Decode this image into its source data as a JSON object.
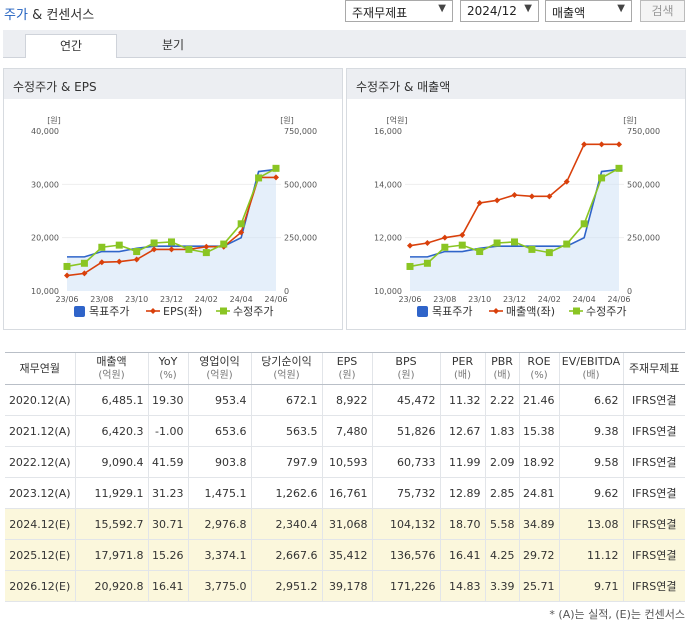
{
  "header": {
    "title_part1": "주가",
    "title_part2": "& 컨센서스",
    "select_type": "주재무제표",
    "select_period": "2024/12",
    "select_metric": "매출액",
    "search_label": "검색"
  },
  "tabs": [
    {
      "label": "연간"
    },
    {
      "label": "분기"
    }
  ],
  "colors": {
    "target": "#2f64c9",
    "eps": "#d9400b",
    "price": "#8ac523",
    "area": "#cfe1f5"
  },
  "chart1": {
    "title": "수정주가 & EPS",
    "left_unit": "[원]",
    "right_unit": "[원]",
    "left_ticks": [
      "40,000",
      "30,000",
      "20,000",
      "10,000"
    ],
    "right_ticks": [
      "750,000",
      "500,000",
      "250,000",
      "0"
    ],
    "x_ticks": [
      "23/06",
      "23/08",
      "23/10",
      "23/12",
      "24/02",
      "24/04",
      "24/06"
    ],
    "legend": [
      "목표주가",
      "EPS(좌)",
      "수정주가"
    ]
  },
  "chart2": {
    "title": "수정주가 & 매출액",
    "left_unit": "[억원]",
    "right_unit": "[원]",
    "left_ticks": [
      "16,000",
      "14,000",
      "12,000",
      "10,000"
    ],
    "right_ticks": [
      "750,000",
      "500,000",
      "250,000",
      "0"
    ],
    "x_ticks": [
      "23/06",
      "23/08",
      "23/10",
      "23/12",
      "24/02",
      "24/04",
      "24/06"
    ],
    "legend": [
      "목표주가",
      "매출액(좌)",
      "수정주가"
    ]
  },
  "chart_data": [
    {
      "type": "line",
      "title": "수정주가 & EPS",
      "x": [
        "23/06",
        "23/07",
        "23/08",
        "23/09",
        "23/10",
        "23/11",
        "23/12",
        "24/01",
        "24/02",
        "24/03",
        "24/04",
        "24/05",
        "24/06"
      ],
      "ylim_left": [
        10000,
        40000
      ],
      "ylim_right": [
        0,
        750000
      ],
      "series": [
        {
          "name": "목표주가",
          "axis": "right",
          "values": [
            160000,
            160000,
            185000,
            185000,
            200000,
            210000,
            210000,
            210000,
            210000,
            210000,
            250000,
            560000,
            570000
          ]
        },
        {
          "name": "EPS(좌)",
          "axis": "left",
          "values": [
            12900,
            13300,
            15400,
            15500,
            15900,
            17800,
            17800,
            17800,
            18300,
            18300,
            21000,
            31300,
            31300
          ]
        },
        {
          "name": "수정주가",
          "axis": "right",
          "values": [
            115000,
            130000,
            205000,
            215000,
            185000,
            225000,
            230000,
            195000,
            180000,
            220000,
            315000,
            530000,
            575000
          ]
        }
      ]
    },
    {
      "type": "line",
      "title": "수정주가 & 매출액",
      "x": [
        "23/06",
        "23/07",
        "23/08",
        "23/09",
        "23/10",
        "23/11",
        "23/12",
        "24/01",
        "24/02",
        "24/03",
        "24/04",
        "24/05",
        "24/06"
      ],
      "ylim_left": [
        10000,
        16000
      ],
      "ylim_right": [
        0,
        750000
      ],
      "series": [
        {
          "name": "목표주가",
          "axis": "right",
          "values": [
            160000,
            160000,
            185000,
            185000,
            200000,
            210000,
            210000,
            210000,
            210000,
            210000,
            250000,
            560000,
            570000
          ]
        },
        {
          "name": "매출액(좌)",
          "axis": "left",
          "values": [
            11700,
            11800,
            12000,
            12100,
            13300,
            13400,
            13600,
            13550,
            13550,
            14100,
            15500,
            15500,
            15500
          ]
        },
        {
          "name": "수정주가",
          "axis": "right",
          "values": [
            115000,
            130000,
            205000,
            215000,
            185000,
            225000,
            230000,
            195000,
            180000,
            220000,
            315000,
            530000,
            575000
          ]
        }
      ]
    }
  ],
  "table": {
    "headers": [
      {
        "label": "재무연월",
        "unit": ""
      },
      {
        "label": "매출액",
        "unit": "(억원)"
      },
      {
        "label": "YoY",
        "unit": "(%)"
      },
      {
        "label": "영업이익",
        "unit": "(억원)"
      },
      {
        "label": "당기순이익",
        "unit": "(억원)"
      },
      {
        "label": "EPS",
        "unit": "(원)"
      },
      {
        "label": "BPS",
        "unit": "(원)"
      },
      {
        "label": "PER",
        "unit": "(배)"
      },
      {
        "label": "PBR",
        "unit": "(배)"
      },
      {
        "label": "ROE",
        "unit": "(%)"
      },
      {
        "label": "EV/EBITDA",
        "unit": "(배)"
      },
      {
        "label": "주재무제표",
        "unit": ""
      }
    ],
    "rows": [
      {
        "est": false,
        "cells": [
          "2020.12(A)",
          "6,485.1",
          "19.30",
          "953.4",
          "672.1",
          "8,922",
          "45,472",
          "11.32",
          "2.22",
          "21.46",
          "6.62",
          "IFRS연결"
        ]
      },
      {
        "est": false,
        "cells": [
          "2021.12(A)",
          "6,420.3",
          "-1.00",
          "653.6",
          "563.5",
          "7,480",
          "51,826",
          "12.67",
          "1.83",
          "15.38",
          "9.38",
          "IFRS연결"
        ]
      },
      {
        "est": false,
        "cells": [
          "2022.12(A)",
          "9,090.4",
          "41.59",
          "903.8",
          "797.9",
          "10,593",
          "60,733",
          "11.99",
          "2.09",
          "18.92",
          "9.58",
          "IFRS연결"
        ]
      },
      {
        "est": false,
        "cells": [
          "2023.12(A)",
          "11,929.1",
          "31.23",
          "1,475.1",
          "1,262.6",
          "16,761",
          "75,732",
          "12.89",
          "2.85",
          "24.81",
          "9.62",
          "IFRS연결"
        ]
      },
      {
        "est": true,
        "cells": [
          "2024.12(E)",
          "15,592.7",
          "30.71",
          "2,976.8",
          "2,340.4",
          "31,068",
          "104,132",
          "18.70",
          "5.58",
          "34.89",
          "13.08",
          "IFRS연결"
        ]
      },
      {
        "est": true,
        "cells": [
          "2025.12(E)",
          "17,971.8",
          "15.26",
          "3,374.1",
          "2,667.6",
          "35,412",
          "136,576",
          "16.41",
          "4.25",
          "29.72",
          "11.12",
          "IFRS연결"
        ]
      },
      {
        "est": true,
        "cells": [
          "2026.12(E)",
          "20,920.8",
          "16.41",
          "3,775.0",
          "2,951.2",
          "39,178",
          "171,226",
          "14.83",
          "3.39",
          "25.71",
          "9.71",
          "IFRS연결"
        ]
      }
    ]
  },
  "footnote": "* (A)는 실적, (E)는 컨센서스"
}
